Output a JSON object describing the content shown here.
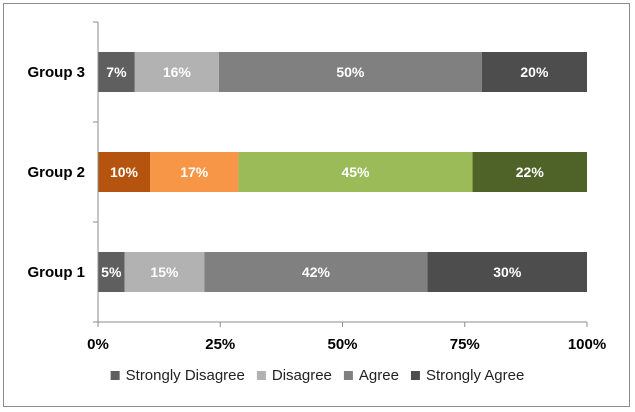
{
  "chart_data": {
    "type": "bar",
    "orientation": "horizontal",
    "stacked": true,
    "percent_stacked": true,
    "categories": [
      "Group 1",
      "Group 2",
      "Group 3"
    ],
    "series": [
      {
        "name": "Strongly Disagree",
        "values": [
          5,
          10,
          7
        ],
        "labels": [
          "5%",
          "10%",
          "7%"
        ]
      },
      {
        "name": "Disagree",
        "values": [
          15,
          17,
          16
        ],
        "labels": [
          "15%",
          "17%",
          "16%"
        ]
      },
      {
        "name": "Agree",
        "values": [
          42,
          45,
          50
        ],
        "labels": [
          "42%",
          "45%",
          "50%"
        ]
      },
      {
        "name": "Strongly Agree",
        "values": [
          30,
          22,
          20
        ],
        "labels": [
          "30%",
          "22%",
          "20%"
        ]
      }
    ],
    "colors": {
      "default": [
        "#5f5f5f",
        "#b2b2b2",
        "#808080",
        "#4d4d4d"
      ],
      "Group 2": [
        "#b5540e",
        "#f79646",
        "#9bbb59",
        "#4f6228"
      ]
    },
    "xlim": [
      0,
      100
    ],
    "xticks": [
      0,
      25,
      50,
      75,
      100
    ],
    "xtick_labels": [
      "0%",
      "25%",
      "50%",
      "75%",
      "100%"
    ],
    "legend": {
      "position": "bottom",
      "entries": [
        "Strongly Disagree",
        "Disagree",
        "Agree",
        "Strongly Agree"
      ]
    },
    "grid": false,
    "title": "",
    "xlabel": "",
    "ylabel": ""
  }
}
